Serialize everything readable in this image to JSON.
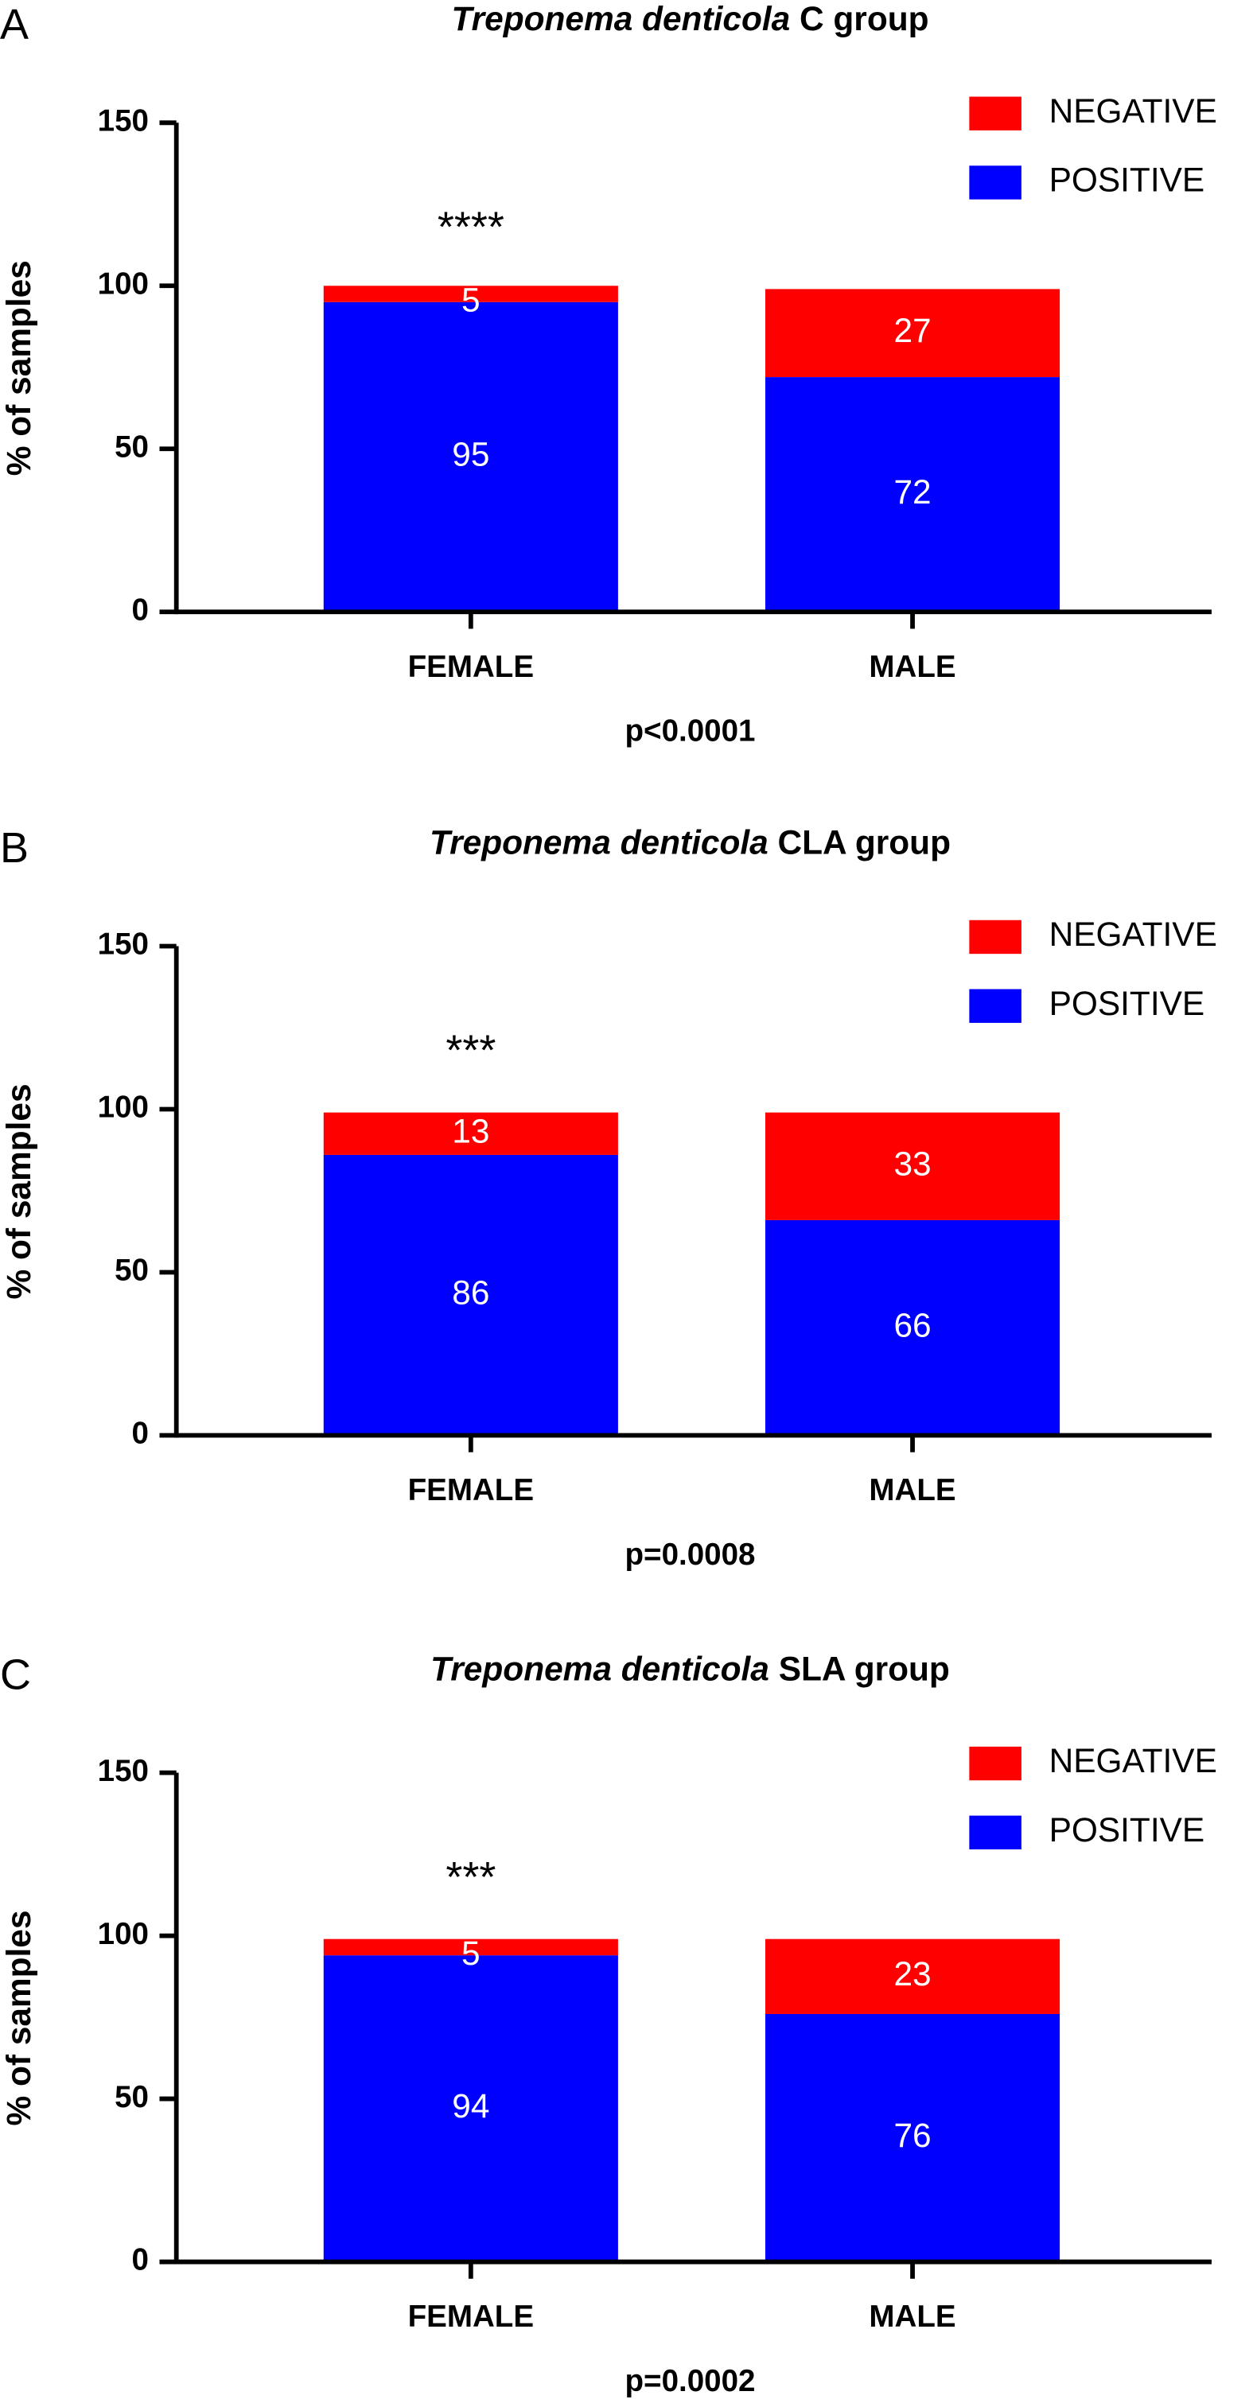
{
  "chart_data": [
    {
      "type": "stacked-bar",
      "panel": "A",
      "species": "Treponema denticola",
      "title": "C group",
      "categories": [
        "FEMALE",
        "MALE"
      ],
      "series": [
        {
          "name": "POSITIVE",
          "color": "#0000ff",
          "values": [
            95,
            72
          ]
        },
        {
          "name": "NEGATIVE",
          "color": "#ff0000",
          "values": [
            5,
            27
          ]
        }
      ],
      "ylabel": "% of samples",
      "ylim": [
        0,
        150
      ],
      "yticks": [
        0,
        50,
        100,
        150
      ],
      "significance": "****",
      "note": "p<0.0001"
    },
    {
      "type": "stacked-bar",
      "panel": "B",
      "species": "Treponema denticola",
      "title": "CLA group",
      "categories": [
        "FEMALE",
        "MALE"
      ],
      "series": [
        {
          "name": "POSITIVE",
          "color": "#0000ff",
          "values": [
            86,
            66
          ]
        },
        {
          "name": "NEGATIVE",
          "color": "#ff0000",
          "values": [
            13,
            33
          ]
        }
      ],
      "ylabel": "% of samples",
      "ylim": [
        0,
        150
      ],
      "yticks": [
        0,
        50,
        100,
        150
      ],
      "significance": "***",
      "note": "p=0.0008"
    },
    {
      "type": "stacked-bar",
      "panel": "C",
      "species": "Treponema denticola",
      "title": "SLA group",
      "categories": [
        "FEMALE",
        "MALE"
      ],
      "series": [
        {
          "name": "POSITIVE",
          "color": "#0000ff",
          "values": [
            94,
            76
          ]
        },
        {
          "name": "NEGATIVE",
          "color": "#ff0000",
          "values": [
            5,
            23
          ]
        }
      ],
      "ylabel": "% of samples",
      "ylim": [
        0,
        150
      ],
      "yticks": [
        0,
        50,
        100,
        150
      ],
      "significance": "***",
      "note": "p=0.0002"
    }
  ]
}
